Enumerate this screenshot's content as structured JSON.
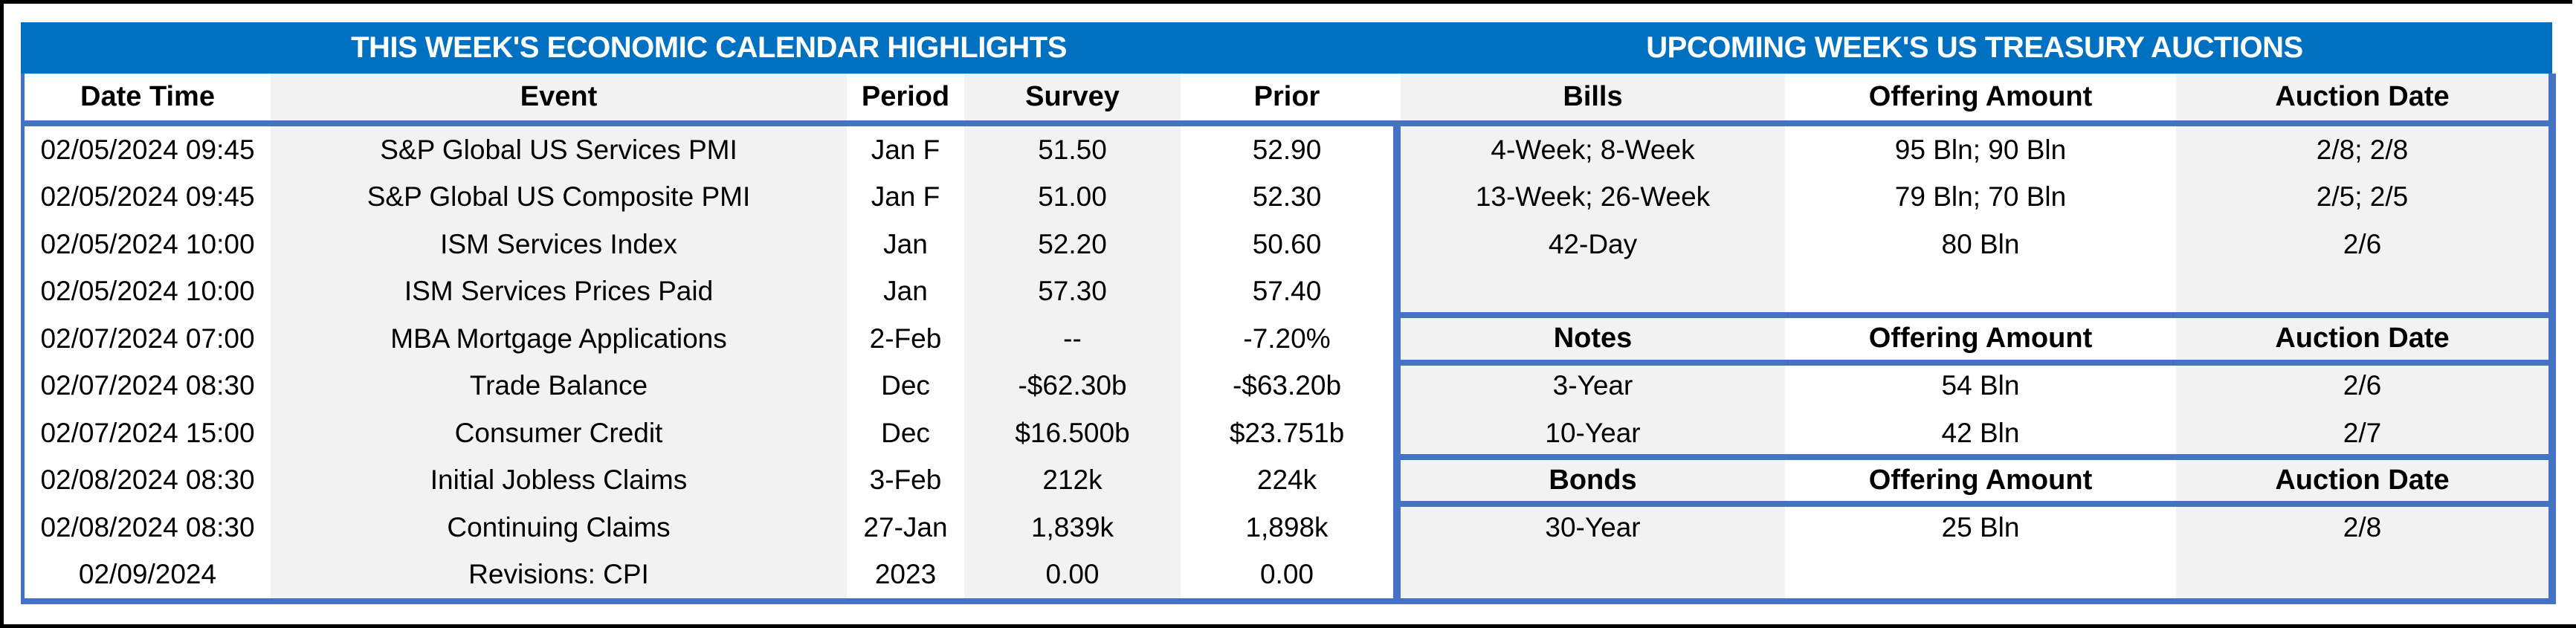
{
  "colors": {
    "title_bar_blue": "#0070C0",
    "table_border_blue": "#4472C4",
    "shaded_column_gray": "#F2F2F2",
    "outer_frame_black": "#000000",
    "title_text": "#FFFFFF",
    "body_text": "#000000"
  },
  "left_table": {
    "title": "THIS WEEK'S ECONOMIC CALENDAR HIGHLIGHTS",
    "columns": [
      "Date Time",
      "Event",
      "Period",
      "Survey",
      "Prior"
    ],
    "rows": [
      [
        "02/05/2024 09:45",
        "S&P Global US Services PMI",
        "Jan F",
        "51.50",
        "52.90"
      ],
      [
        "02/05/2024 09:45",
        "S&P Global US Composite PMI",
        "Jan F",
        "51.00",
        "52.30"
      ],
      [
        "02/05/2024 10:00",
        "ISM Services Index",
        "Jan",
        "52.20",
        "50.60"
      ],
      [
        "02/05/2024 10:00",
        "ISM Services Prices Paid",
        "Jan",
        "57.30",
        "57.40"
      ],
      [
        "02/07/2024 07:00",
        "MBA Mortgage Applications",
        "2-Feb",
        "--",
        "-7.20%"
      ],
      [
        "02/07/2024 08:30",
        "Trade Balance",
        "Dec",
        "-$62.30b",
        "-$63.20b"
      ],
      [
        "02/07/2024 15:00",
        "Consumer Credit",
        "Dec",
        "$16.500b",
        "$23.751b"
      ],
      [
        "02/08/2024 08:30",
        "Initial Jobless Claims",
        "3-Feb",
        "212k",
        "224k"
      ],
      [
        "02/08/2024 08:30",
        "Continuing Claims",
        "27-Jan",
        "1,839k",
        "1,898k"
      ],
      [
        "02/09/2024",
        "Revisions: CPI",
        "2023",
        "0.00",
        "0.00"
      ]
    ]
  },
  "right_table": {
    "title": "UPCOMING WEEK'S US TREASURY AUCTIONS",
    "sections": [
      {
        "header": [
          "Bills",
          "Offering Amount",
          "Auction Date"
        ],
        "rows": [
          [
            "4-Week; 8-Week",
            "95 Bln; 90 Bln",
            "2/8; 2/8"
          ],
          [
            "13-Week; 26-Week",
            "79 Bln; 70 Bln",
            "2/5; 2/5"
          ],
          [
            "42-Day",
            "80 Bln",
            "2/6"
          ]
        ]
      },
      {
        "header": [
          "Notes",
          "Offering Amount",
          "Auction Date"
        ],
        "rows": [
          [
            "3-Year",
            "54 Bln",
            "2/6"
          ],
          [
            "10-Year",
            "42 Bln",
            "2/7"
          ]
        ]
      },
      {
        "header": [
          "Bonds",
          "Offering Amount",
          "Auction Date"
        ],
        "rows": [
          [
            "30-Year",
            "25 Bln",
            "2/8"
          ]
        ]
      }
    ]
  }
}
